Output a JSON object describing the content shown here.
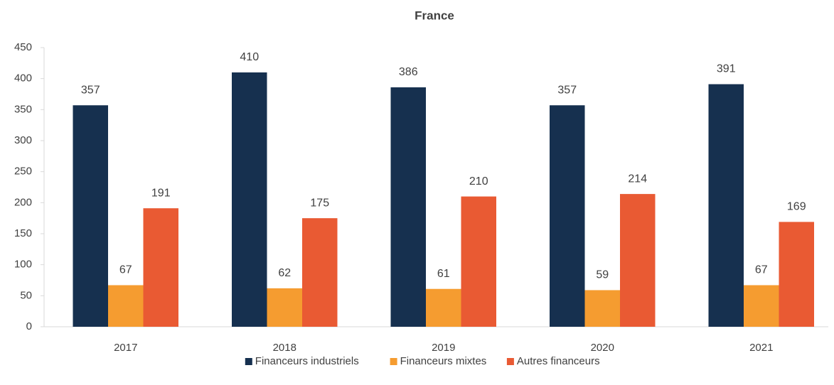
{
  "chart_data": {
    "type": "bar",
    "title": "France",
    "categories": [
      "2017",
      "2018",
      "2019",
      "2020",
      "2021"
    ],
    "series": [
      {
        "name": "Financeurs industriels",
        "color": "#16304f",
        "values": [
          357,
          410,
          386,
          357,
          391
        ]
      },
      {
        "name": "Financeurs mixtes",
        "color": "#f59c30",
        "values": [
          67,
          62,
          61,
          59,
          67
        ]
      },
      {
        "name": "Autres financeurs",
        "color": "#e95a33",
        "values": [
          191,
          175,
          210,
          214,
          169
        ]
      }
    ],
    "ylim": [
      0,
      450
    ],
    "yticks": [
      0,
      50,
      100,
      150,
      200,
      250,
      300,
      350,
      400,
      450
    ],
    "grid": false,
    "legend": "bottom"
  }
}
